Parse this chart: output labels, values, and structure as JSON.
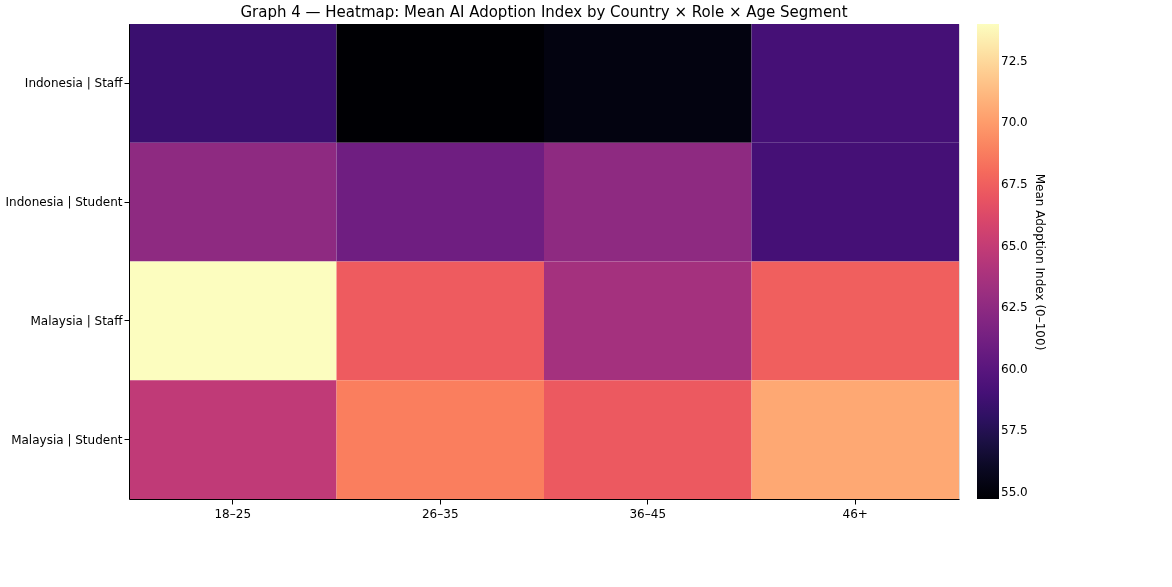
{
  "chart_data": {
    "type": "heatmap",
    "title": "Graph 4 — Heatmap: Mean AI Adoption Index by Country × Role × Age Segment",
    "categories": [
      "18–25",
      "26–35",
      "36–45",
      "46+"
    ],
    "y_categories": [
      "Indonesia | Staff",
      "Indonesia | Student",
      "Malaysia | Staff",
      "Malaysia | Student"
    ],
    "cells": [
      [
        58.5,
        54.7,
        55.2,
        59.0
      ],
      [
        62.5,
        61.0,
        62.5,
        59.0
      ],
      [
        74.0,
        67.3,
        63.5,
        67.5
      ],
      [
        64.8,
        68.8,
        67.2,
        70.5
      ]
    ],
    "clabel": "Mean Adoption Index (0–100)",
    "clim": [
      54.7,
      74.0
    ],
    "cticks": [
      {
        "value": 55,
        "label": "55.0"
      },
      57.5,
      {
        "value": 60,
        "label": "60.0"
      },
      62.5,
      {
        "value": 65,
        "label": "65.0"
      },
      67.5,
      {
        "value": 70,
        "label": "70.0"
      },
      72.5
    ]
  }
}
